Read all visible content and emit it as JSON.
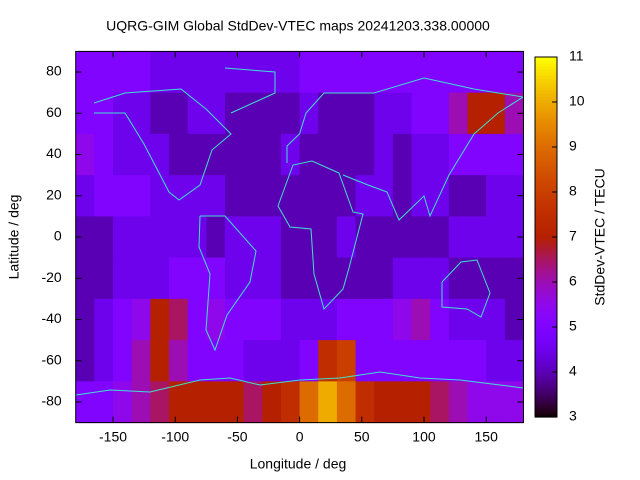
{
  "chart_data": {
    "type": "heatmap",
    "title": "UQRG-GIM Global StdDev-VTEC maps 20241203.338.00000",
    "xlabel": "Longitude / deg",
    "ylabel": "Latitude / deg",
    "colorbar_label": "StdDev-VTEC / TECU",
    "x": [
      -172.5,
      -157.5,
      -142.5,
      -127.5,
      -112.5,
      -97.5,
      -82.5,
      -67.5,
      -52.5,
      -37.5,
      -22.5,
      -7.5,
      7.5,
      22.5,
      37.5,
      52.5,
      67.5,
      82.5,
      97.5,
      112.5,
      127.5,
      142.5,
      157.5,
      172.5
    ],
    "y": [
      80,
      60,
      40,
      20,
      0,
      -20,
      -40,
      -60,
      -80
    ],
    "z": [
      [
        5,
        5,
        5,
        5,
        4.5,
        4.5,
        4.5,
        4.5,
        4.5,
        4.5,
        4.5,
        4.5,
        5,
        5,
        5,
        5,
        5,
        5,
        5,
        5,
        5,
        5,
        5,
        5
      ],
      [
        5,
        5,
        4.5,
        4.5,
        4,
        4,
        4.5,
        4.5,
        4,
        4,
        4,
        4,
        4.5,
        4,
        4,
        4,
        4.5,
        4.5,
        5,
        5,
        6,
        7,
        7,
        6
      ],
      [
        5.5,
        5,
        4.5,
        4.5,
        4.5,
        4,
        4,
        4,
        4,
        4,
        4,
        4.5,
        4,
        4,
        4,
        4,
        4.5,
        4,
        4.5,
        4.5,
        5,
        5,
        5,
        5
      ],
      [
        4.5,
        5,
        5,
        5,
        4.5,
        4.5,
        4.5,
        4.5,
        4,
        4,
        4,
        4,
        4,
        4,
        4,
        4.5,
        4.5,
        4,
        4.5,
        4.5,
        4,
        4,
        4.5,
        4.5
      ],
      [
        4,
        4,
        4.5,
        4.5,
        4.5,
        4.5,
        4.5,
        4,
        4.5,
        4.5,
        4.5,
        4,
        4,
        4,
        4.5,
        4,
        4,
        4,
        4,
        4,
        4.5,
        4.5,
        4.5,
        4.5
      ],
      [
        4,
        4,
        4.5,
        4.5,
        4.5,
        5,
        5,
        5,
        4.5,
        4.5,
        4.5,
        4,
        4,
        4,
        4,
        4,
        4,
        4.5,
        4.5,
        4.5,
        4,
        4,
        4,
        4
      ],
      [
        4,
        4.5,
        5,
        5.5,
        7,
        6.5,
        5,
        5.5,
        5,
        5,
        5,
        4.5,
        4.5,
        4.5,
        5,
        5,
        5,
        5.5,
        6,
        5,
        4.5,
        4.5,
        4.5,
        4
      ],
      [
        4,
        4.5,
        5,
        6,
        7,
        6,
        5,
        5,
        5,
        4.5,
        4.5,
        4.5,
        5,
        7.5,
        8,
        5,
        5,
        5,
        5,
        5,
        5,
        5,
        4.5,
        4.5
      ],
      [
        5,
        5,
        5.5,
        6,
        6.5,
        7,
        7,
        7,
        7,
        6.5,
        7,
        7.5,
        9,
        10,
        9,
        7.5,
        7,
        7,
        7,
        6.5,
        6,
        5.5,
        5.5,
        5.5
      ]
    ],
    "xlim": [
      -180,
      180
    ],
    "ylim": [
      -90,
      90
    ],
    "xticks": [
      -150,
      -100,
      -50,
      0,
      50,
      100,
      150
    ],
    "yticks": [
      -80,
      -60,
      -40,
      -20,
      0,
      20,
      40,
      60,
      80
    ],
    "zlim": [
      3,
      11
    ],
    "zticks": [
      3,
      4,
      5,
      6,
      7,
      8,
      9,
      10,
      11
    ]
  }
}
